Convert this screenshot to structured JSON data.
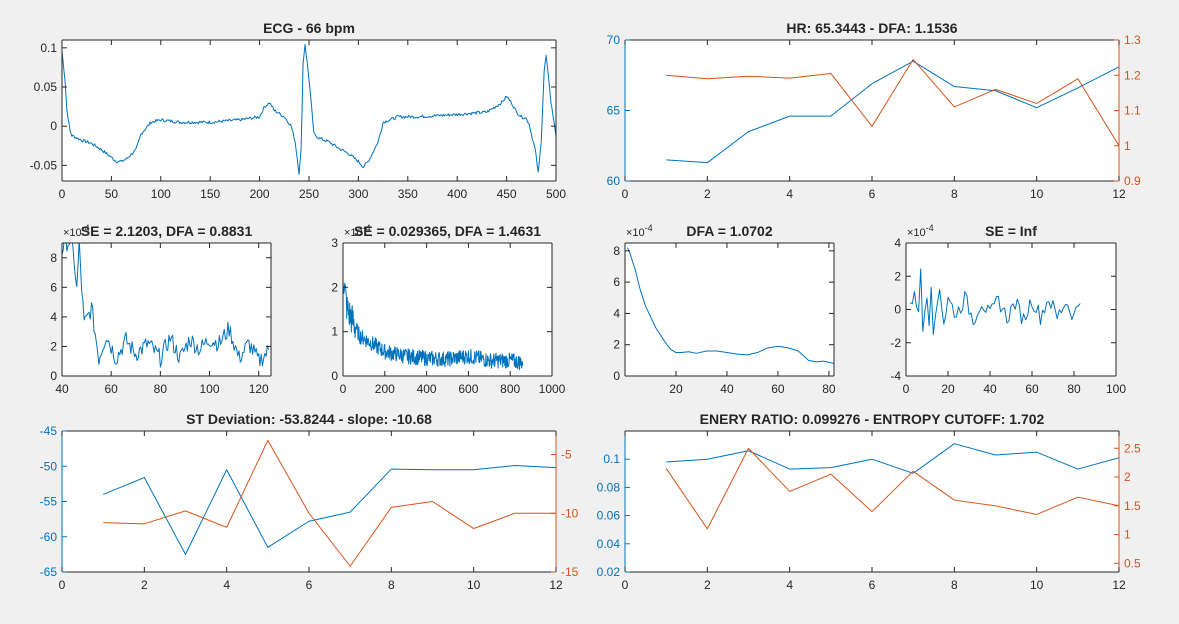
{
  "figure": {
    "background": "#f0f0f0"
  },
  "chart_data": [
    {
      "id": "ecg",
      "type": "line",
      "title": "ECG - 66 bpm",
      "xlim": [
        0,
        500
      ],
      "ylim": [
        -0.07,
        0.11
      ],
      "xticks": [
        0,
        50,
        100,
        150,
        200,
        250,
        300,
        350,
        400,
        450,
        500
      ],
      "yticks": [
        -0.05,
        0,
        0.05,
        0.1
      ],
      "yticklabels": [
        "-0.05",
        "0",
        "0.05",
        "0.1"
      ],
      "series": [
        {
          "name": "ECG",
          "color": "#0072bd",
          "generator": "ecg",
          "x": [
            0,
            3,
            5,
            8,
            10,
            15,
            20,
            30,
            40,
            50,
            55,
            60,
            65,
            75,
            80,
            90,
            100,
            120,
            150,
            180,
            200,
            205,
            210,
            215,
            225,
            232,
            236,
            240,
            242,
            244,
            246,
            250,
            255,
            260,
            270,
            280,
            290,
            300,
            305,
            310,
            320,
            325,
            340,
            360,
            400,
            430,
            445,
            450,
            455,
            460,
            465,
            470,
            473,
            476,
            479,
            482,
            485,
            488,
            490,
            495,
            500
          ],
          "y": [
            0.095,
            0.06,
            0.02,
            -0.005,
            -0.012,
            -0.015,
            -0.018,
            -0.022,
            -0.03,
            -0.04,
            -0.045,
            -0.045,
            -0.042,
            -0.03,
            -0.01,
            0.005,
            0.008,
            0.005,
            0.005,
            0.008,
            0.012,
            0.025,
            0.03,
            0.02,
            0.012,
            0.0,
            -0.02,
            -0.06,
            -0.03,
            0.08,
            0.105,
            0.06,
            -0.01,
            -0.015,
            -0.02,
            -0.028,
            -0.035,
            -0.045,
            -0.052,
            -0.045,
            -0.02,
            0.005,
            0.012,
            0.012,
            0.015,
            0.018,
            0.03,
            0.038,
            0.03,
            0.018,
            0.012,
            0.01,
            0.002,
            -0.015,
            -0.03,
            -0.06,
            -0.02,
            0.07,
            0.09,
            0.03,
            -0.012
          ]
        }
      ]
    },
    {
      "id": "hr",
      "type": "line",
      "title": "HR: 65.3443 - DFA: 1.1536",
      "xlim": [
        0,
        12
      ],
      "ylim": [
        60,
        70
      ],
      "y2lim": [
        0.9,
        1.3
      ],
      "xticks": [
        0,
        2,
        4,
        6,
        8,
        10,
        12
      ],
      "yticks": [
        60,
        65,
        70
      ],
      "y2ticks": [
        0.9,
        1,
        1.1,
        1.2,
        1.3
      ],
      "y2ticklabels": [
        "0.9",
        "1",
        "1.1",
        "1.2",
        "1.3"
      ],
      "series": [
        {
          "name": "HR",
          "axis": "left",
          "color": "#0072bd",
          "x": [
            1,
            2,
            3,
            4,
            5,
            6,
            7,
            8,
            9,
            10,
            11,
            12
          ],
          "y": [
            61.5,
            61.3,
            63.5,
            64.6,
            64.6,
            66.9,
            68.5,
            66.7,
            66.4,
            65.2,
            66.6,
            68.1
          ]
        },
        {
          "name": "DFA",
          "axis": "right",
          "color": "#d95319",
          "x": [
            1,
            2,
            3,
            4,
            5,
            6,
            7,
            8,
            9,
            10,
            11,
            12
          ],
          "y": [
            1.2,
            1.19,
            1.197,
            1.192,
            1.205,
            1.055,
            1.245,
            1.11,
            1.16,
            1.12,
            1.19,
            1.0
          ]
        }
      ]
    },
    {
      "id": "se1",
      "type": "line",
      "title": "SE = 2.1203, DFA = 0.8831",
      "xlim": [
        40,
        125
      ],
      "ylim": [
        0,
        9
      ],
      "xticks": [
        40,
        60,
        80,
        100,
        120
      ],
      "yticks": [
        0,
        2,
        4,
        6,
        8
      ],
      "exponent": "×10",
      "exponentPower": "-4",
      "series": [
        {
          "name": "SE",
          "color": "#0072bd",
          "generator": "se1",
          "x": [
            40,
            41,
            43,
            44,
            45,
            46,
            47,
            48,
            49,
            50,
            52,
            55,
            58,
            62,
            66,
            70,
            75,
            80,
            84,
            88,
            92,
            96,
            100,
            104,
            108,
            112,
            116,
            120,
            124
          ],
          "y": [
            8.5,
            9,
            9.1,
            8.8,
            7.8,
            5.8,
            8.9,
            6.0,
            3.5,
            3.8,
            4.6,
            1.2,
            2.8,
            1.2,
            2.4,
            1.5,
            2.2,
            1.2,
            2.6,
            1.2,
            2.5,
            1.8,
            2.5,
            2.2,
            3.2,
            1.2,
            2.2,
            1.0,
            1.7
          ]
        }
      ]
    },
    {
      "id": "se2",
      "type": "line",
      "title": "SE = 0.029365, DFA = 1.4631",
      "xlim": [
        0,
        1000
      ],
      "ylim": [
        0,
        3
      ],
      "xticks": [
        0,
        200,
        400,
        600,
        800,
        1000
      ],
      "yticks": [
        0,
        1,
        2,
        3
      ],
      "exponent": "×10",
      "exponentPower": "-4",
      "series": [
        {
          "name": "SE",
          "color": "#0072bd",
          "generator": "se2",
          "x": [
            0,
            20,
            50,
            80,
            100,
            150,
            200,
            300,
            400,
            500,
            600,
            700,
            800,
            860
          ],
          "y": [
            2.3,
            1.5,
            1.2,
            0.9,
            0.85,
            0.7,
            0.55,
            0.45,
            0.4,
            0.38,
            0.45,
            0.35,
            0.35,
            0.3
          ]
        }
      ]
    },
    {
      "id": "dfa",
      "type": "line",
      "title": "DFA = 1.0702",
      "xlim": [
        0,
        82
      ],
      "ylim": [
        0,
        8.5
      ],
      "xticks": [
        20,
        40,
        60,
        80
      ],
      "yticks": [
        0,
        2,
        4,
        6,
        8
      ],
      "exponent": "×10",
      "exponentPower": "-4",
      "series": [
        {
          "name": "DFA",
          "color": "#0072bd",
          "x": [
            1,
            2,
            4,
            6,
            8,
            10,
            12,
            14,
            16,
            18,
            20,
            22,
            25,
            28,
            32,
            36,
            40,
            44,
            48,
            52,
            56,
            60,
            64,
            68,
            70,
            72,
            75,
            78,
            82
          ],
          "y": [
            8.2,
            7.8,
            6.8,
            5.5,
            4.5,
            3.8,
            3.1,
            2.6,
            2.1,
            1.7,
            1.5,
            1.5,
            1.55,
            1.45,
            1.6,
            1.6,
            1.5,
            1.4,
            1.35,
            1.5,
            1.8,
            1.9,
            1.8,
            1.6,
            1.3,
            1.0,
            0.9,
            0.95,
            0.8
          ]
        }
      ]
    },
    {
      "id": "se3",
      "type": "line",
      "title": "SE = Inf",
      "xlim": [
        0,
        100
      ],
      "ylim": [
        -4,
        4
      ],
      "xticks": [
        0,
        20,
        40,
        60,
        80,
        100
      ],
      "yticks": [
        -4,
        -2,
        0,
        2,
        4
      ],
      "exponent": "×10",
      "exponentPower": "-4",
      "series": [
        {
          "name": "SE",
          "color": "#0072bd",
          "generator": "se3",
          "x": [
            2,
            4,
            5,
            6,
            7,
            8,
            9,
            10,
            11,
            12,
            13,
            14,
            16,
            18,
            20,
            24,
            28,
            32,
            36,
            40,
            44,
            48,
            52,
            56,
            60,
            64,
            68,
            72,
            76,
            80,
            83
          ],
          "y": [
            0,
            1.3,
            0.5,
            -0.5,
            2.5,
            -1.2,
            0.4,
            1.0,
            -0.5,
            1.8,
            -2.0,
            -0.4,
            1.5,
            -0.8,
            0.6,
            -0.3,
            0.7,
            -0.6,
            0.5,
            -0.4,
            0.6,
            -0.5,
            0.4,
            -0.6,
            0.6,
            -0.4,
            0.7,
            -0.5,
            0.5,
            -0.4,
            0.6
          ]
        }
      ]
    },
    {
      "id": "st",
      "type": "line",
      "title": "ST Deviation: -53.8244 - slope: -10.68",
      "xlim": [
        0,
        12
      ],
      "ylim": [
        -65,
        -45
      ],
      "y2lim": [
        -15,
        -3
      ],
      "xticks": [
        0,
        2,
        4,
        6,
        8,
        10,
        12
      ],
      "yticks": [
        -65,
        -60,
        -55,
        -50,
        -45
      ],
      "y2ticks": [
        -15,
        -10,
        -5
      ],
      "series": [
        {
          "name": "ST Deviation",
          "axis": "left",
          "color": "#0072bd",
          "x": [
            1,
            2,
            3,
            4,
            5,
            6,
            7,
            8,
            9,
            10,
            11,
            12
          ],
          "y": [
            -54,
            -51.6,
            -62.5,
            -50.5,
            -61.5,
            -57.8,
            -56.5,
            -50.4,
            -50.5,
            -50.5,
            -49.9,
            -50.2
          ]
        },
        {
          "name": "Slope",
          "axis": "right",
          "color": "#d95319",
          "x": [
            1,
            2,
            3,
            4,
            5,
            6,
            7,
            8,
            9,
            10,
            11,
            12
          ],
          "y": [
            -10.8,
            -10.9,
            -9.8,
            -11.2,
            -3.8,
            -10.0,
            -14.5,
            -9.5,
            -9.0,
            -11.3,
            -10.0,
            -10.0
          ]
        }
      ]
    },
    {
      "id": "energy",
      "type": "line",
      "title": "ENERY RATIO: 0.099276 - ENTROPY CUTOFF: 1.702",
      "xlim": [
        0,
        12
      ],
      "ylim": [
        0.02,
        0.12
      ],
      "y2lim": [
        0.35,
        2.8
      ],
      "xticks": [
        0,
        2,
        4,
        6,
        8,
        10,
        12
      ],
      "yticks": [
        0.02,
        0.04,
        0.06,
        0.08,
        0.1
      ],
      "yticklabels": [
        "0.02",
        "0.04",
        "0.06",
        "0.08",
        "0.1"
      ],
      "y2ticks": [
        0.5,
        1,
        1.5,
        2,
        2.5
      ],
      "y2ticklabels": [
        "0.5",
        "1",
        "1.5",
        "2",
        "2.5"
      ],
      "series": [
        {
          "name": "Energy Ratio",
          "axis": "left",
          "color": "#0072bd",
          "x": [
            1,
            2,
            3,
            4,
            5,
            6,
            7,
            8,
            9,
            10,
            11,
            12
          ],
          "y": [
            0.098,
            0.1,
            0.106,
            0.093,
            0.094,
            0.1,
            0.09,
            0.111,
            0.103,
            0.105,
            0.093,
            0.101
          ]
        },
        {
          "name": "Entropy Cutoff",
          "axis": "right",
          "color": "#d95319",
          "x": [
            1,
            2,
            3,
            4,
            5,
            6,
            7,
            8,
            9,
            10,
            11,
            12
          ],
          "y": [
            2.15,
            1.1,
            2.5,
            1.75,
            2.05,
            1.4,
            2.1,
            1.6,
            1.5,
            1.35,
            1.65,
            1.5
          ]
        }
      ]
    }
  ]
}
